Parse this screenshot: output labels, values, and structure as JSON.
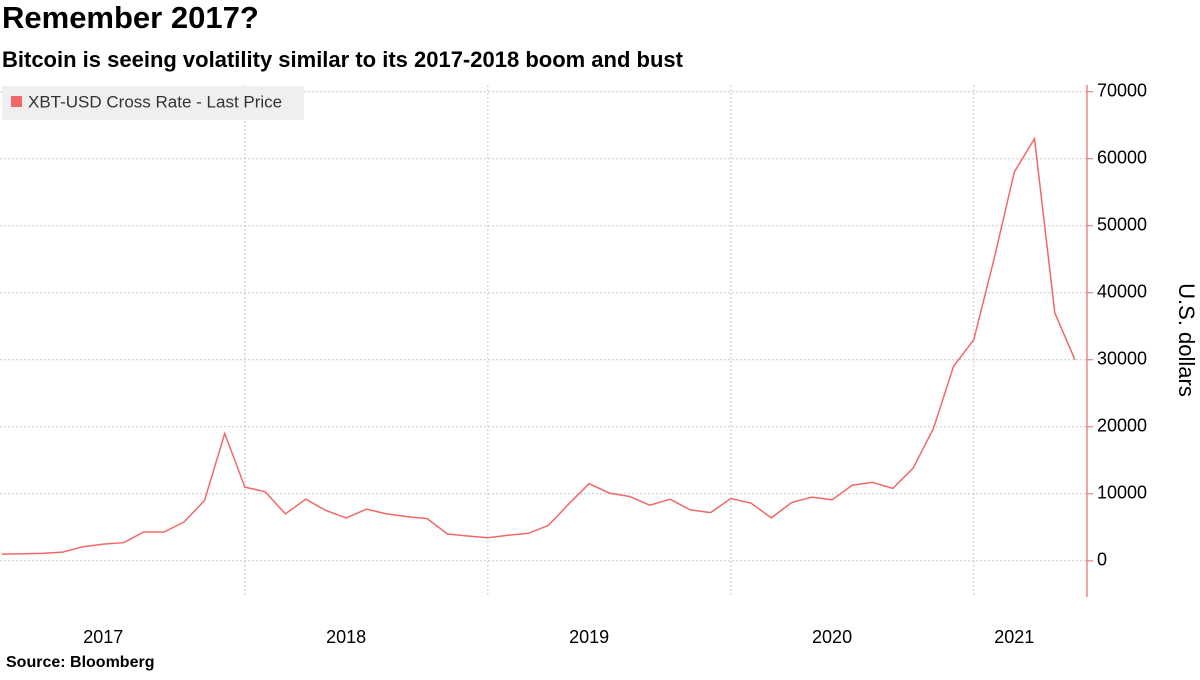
{
  "chart_data": {
    "type": "line",
    "title": "Remember 2017?",
    "subtitle": "Bitcoin is seeing volatility similar to its 2017-2018 boom and bust",
    "y_label": "U.S. dollars",
    "source": "Source: Bloomberg",
    "categories": [
      null,
      null,
      null,
      null,
      null,
      "2017",
      null,
      null,
      null,
      null,
      null,
      null,
      null,
      null,
      null,
      null,
      null,
      "2018",
      null,
      null,
      null,
      null,
      null,
      null,
      null,
      null,
      null,
      null,
      null,
      "2019",
      null,
      null,
      null,
      null,
      null,
      null,
      null,
      null,
      null,
      null,
      null,
      "2020",
      null,
      null,
      null,
      null,
      null,
      null,
      null,
      null,
      "2021",
      null,
      null,
      null
    ],
    "series": [
      {
        "name": "XBT-USD Cross Rate - Last Price",
        "color": "#f26868",
        "values": [
          1000,
          1050,
          1100,
          1300,
          2100,
          2500,
          2700,
          4300,
          4300,
          5800,
          9000,
          19000,
          11000,
          10300,
          7000,
          9200,
          7500,
          6400,
          7700,
          7000,
          6600,
          6300,
          4000,
          3700,
          3450,
          3800,
          4100,
          5300,
          8500,
          11500,
          10100,
          9600,
          8300,
          9200,
          7600,
          7200,
          9300,
          8600,
          6400,
          8700,
          9500,
          9100,
          11300,
          11700,
          10800,
          13800,
          19700,
          29000,
          33000,
          45000,
          58000,
          63000,
          37000,
          30000
        ]
      }
    ],
    "ylim": [
      -5400,
      71000
    ],
    "yticks": [
      0,
      10000,
      20000,
      30000,
      40000,
      50000,
      60000,
      70000
    ],
    "grid": true,
    "legend": "top-left"
  }
}
